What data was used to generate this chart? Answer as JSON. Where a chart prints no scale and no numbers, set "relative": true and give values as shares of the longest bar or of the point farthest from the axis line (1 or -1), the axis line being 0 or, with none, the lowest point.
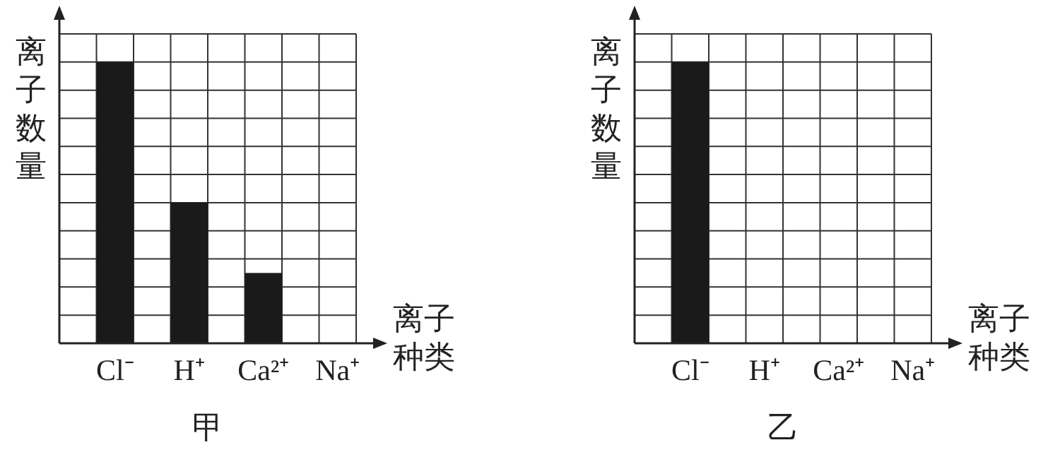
{
  "chart_data": [
    {
      "type": "bar",
      "title": "甲",
      "xlabel": "离子种类",
      "ylabel": "离子数量",
      "categories": [
        "Cl⁻",
        "H⁺",
        "Ca²⁺",
        "Na⁺"
      ],
      "values": [
        1,
        0.5,
        0.25,
        0
      ],
      "color": "#1a1a1a",
      "relative": true,
      "grid": true
    },
    {
      "type": "bar",
      "title": "乙",
      "xlabel": "离子种类",
      "ylabel": "离子数量",
      "categories": [
        "Cl⁻",
        "H⁺",
        "Ca²⁺",
        "Na⁺"
      ],
      "values": [
        1,
        0,
        0,
        0
      ],
      "color": "#1a1a1a",
      "relative": true,
      "grid": true
    }
  ]
}
